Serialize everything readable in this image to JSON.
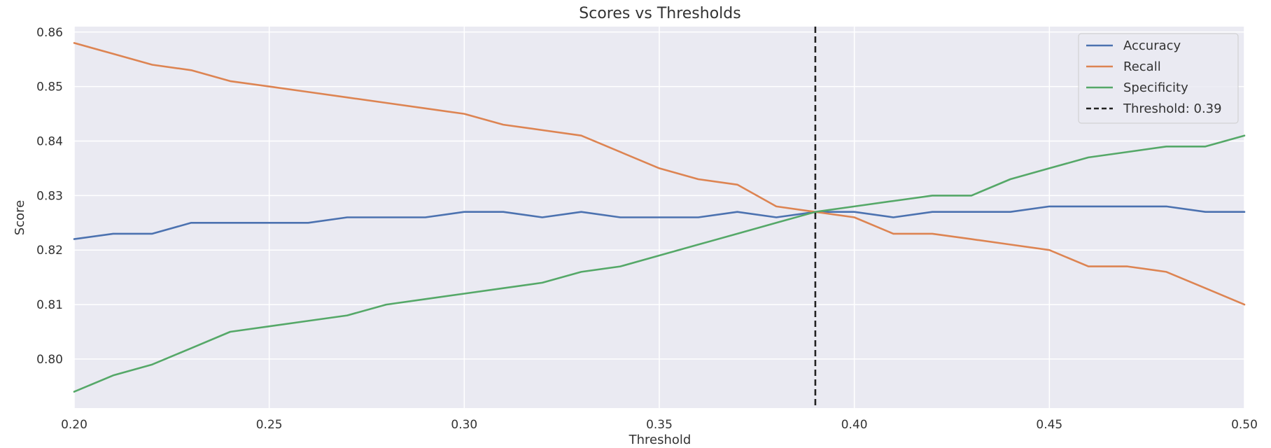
{
  "chart_data": {
    "type": "line",
    "title": "Scores vs Thresholds",
    "xlabel": "Threshold",
    "ylabel": "Score",
    "xlim": [
      0.2,
      0.5
    ],
    "ylim": [
      0.791,
      0.861
    ],
    "xticks": [
      0.2,
      0.25,
      0.3,
      0.35,
      0.4,
      0.45,
      0.5
    ],
    "xtick_labels": [
      "0.20",
      "0.25",
      "0.30",
      "0.35",
      "0.40",
      "0.45",
      "0.50"
    ],
    "yticks": [
      0.8,
      0.81,
      0.82,
      0.83,
      0.84,
      0.85,
      0.86
    ],
    "ytick_labels": [
      "0.80",
      "0.81",
      "0.82",
      "0.83",
      "0.84",
      "0.85",
      "0.86"
    ],
    "grid": true,
    "legend_position": "top-right",
    "x": [
      0.2,
      0.21,
      0.22,
      0.23,
      0.24,
      0.25,
      0.26,
      0.27,
      0.28,
      0.29,
      0.3,
      0.31,
      0.32,
      0.33,
      0.34,
      0.35,
      0.36,
      0.37,
      0.38,
      0.39,
      0.4,
      0.41,
      0.42,
      0.43,
      0.44,
      0.45,
      0.46,
      0.47,
      0.48,
      0.49,
      0.5
    ],
    "series": [
      {
        "name": "Accuracy",
        "color": "#4c72b0",
        "values": [
          0.822,
          0.823,
          0.823,
          0.825,
          0.825,
          0.825,
          0.825,
          0.826,
          0.826,
          0.826,
          0.827,
          0.827,
          0.826,
          0.827,
          0.826,
          0.826,
          0.826,
          0.827,
          0.826,
          0.827,
          0.827,
          0.826,
          0.827,
          0.827,
          0.827,
          0.828,
          0.828,
          0.828,
          0.828,
          0.827,
          0.827
        ]
      },
      {
        "name": "Recall",
        "color": "#dd8452",
        "values": [
          0.858,
          0.856,
          0.854,
          0.853,
          0.851,
          0.85,
          0.849,
          0.848,
          0.847,
          0.846,
          0.845,
          0.843,
          0.842,
          0.841,
          0.838,
          0.835,
          0.833,
          0.832,
          0.828,
          0.827,
          0.826,
          0.823,
          0.823,
          0.822,
          0.821,
          0.82,
          0.817,
          0.817,
          0.816,
          0.813,
          0.81
        ]
      },
      {
        "name": "Specificity",
        "color": "#55a868",
        "values": [
          0.794,
          0.797,
          0.799,
          0.802,
          0.805,
          0.806,
          0.807,
          0.808,
          0.81,
          0.811,
          0.812,
          0.813,
          0.814,
          0.816,
          0.817,
          0.819,
          0.821,
          0.823,
          0.825,
          0.827,
          0.828,
          0.829,
          0.83,
          0.83,
          0.833,
          0.835,
          0.837,
          0.838,
          0.839,
          0.839,
          0.841
        ]
      }
    ],
    "threshold_line": {
      "name": "Threshold: 0.39",
      "x": 0.39,
      "color": "#222222",
      "style": "dashed"
    }
  }
}
